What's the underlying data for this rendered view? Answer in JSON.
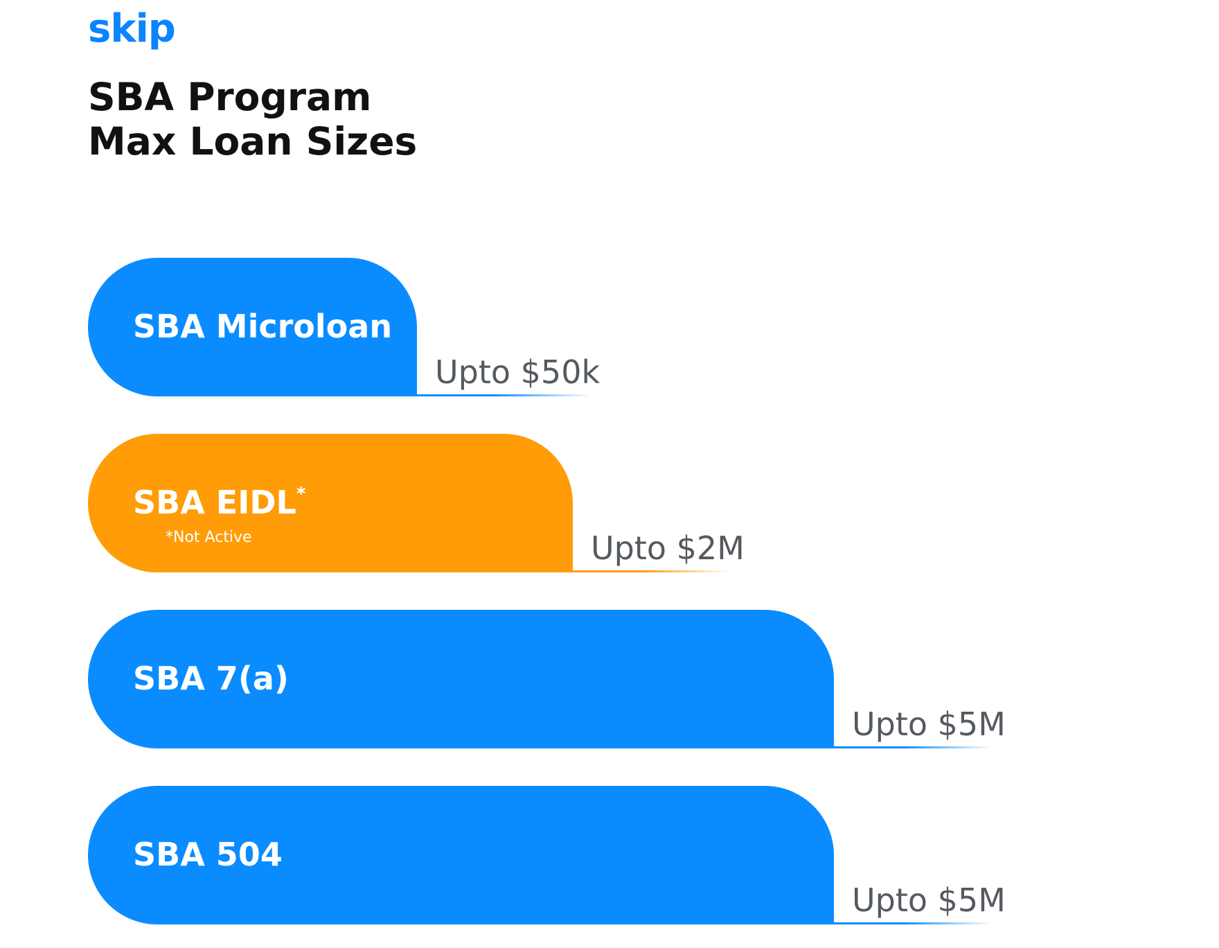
{
  "brand": {
    "logo_text": "skip"
  },
  "header": {
    "title_lines": [
      "SBA Program",
      "Max Loan Sizes"
    ]
  },
  "colors": {
    "blue": "#0a8cff",
    "orange": "#ff9c08",
    "value_text": "#555a60"
  },
  "chart_data": {
    "type": "bar",
    "orientation": "horizontal",
    "title": "SBA Program Max Loan Sizes",
    "xlabel": "",
    "ylabel": "",
    "categories": [
      "SBA Microloan",
      "SBA EIDL",
      "SBA 7(a)",
      "SBA 504"
    ],
    "values": [
      50000,
      2000000,
      5000000,
      5000000
    ],
    "value_labels": [
      "Upto $50k",
      "Upto $2M",
      "Upto $5M",
      "Upto $5M"
    ],
    "bars": [
      {
        "label": "SBA Microloan",
        "value_label": "Upto $50k",
        "color": "#0a8cff",
        "asterisk": "",
        "note": ""
      },
      {
        "label": "SBA EIDL",
        "value_label": "Upto $2M",
        "color": "#ff9c08",
        "asterisk": "*",
        "note": "*Not Active"
      },
      {
        "label": "SBA 7(a)",
        "value_label": "Upto $5M",
        "color": "#0a8cff",
        "asterisk": "",
        "note": ""
      },
      {
        "label": "SBA 504",
        "value_label": "Upto $5M",
        "color": "#0a8cff",
        "asterisk": "",
        "note": ""
      }
    ],
    "grid": false,
    "legend": "none"
  }
}
